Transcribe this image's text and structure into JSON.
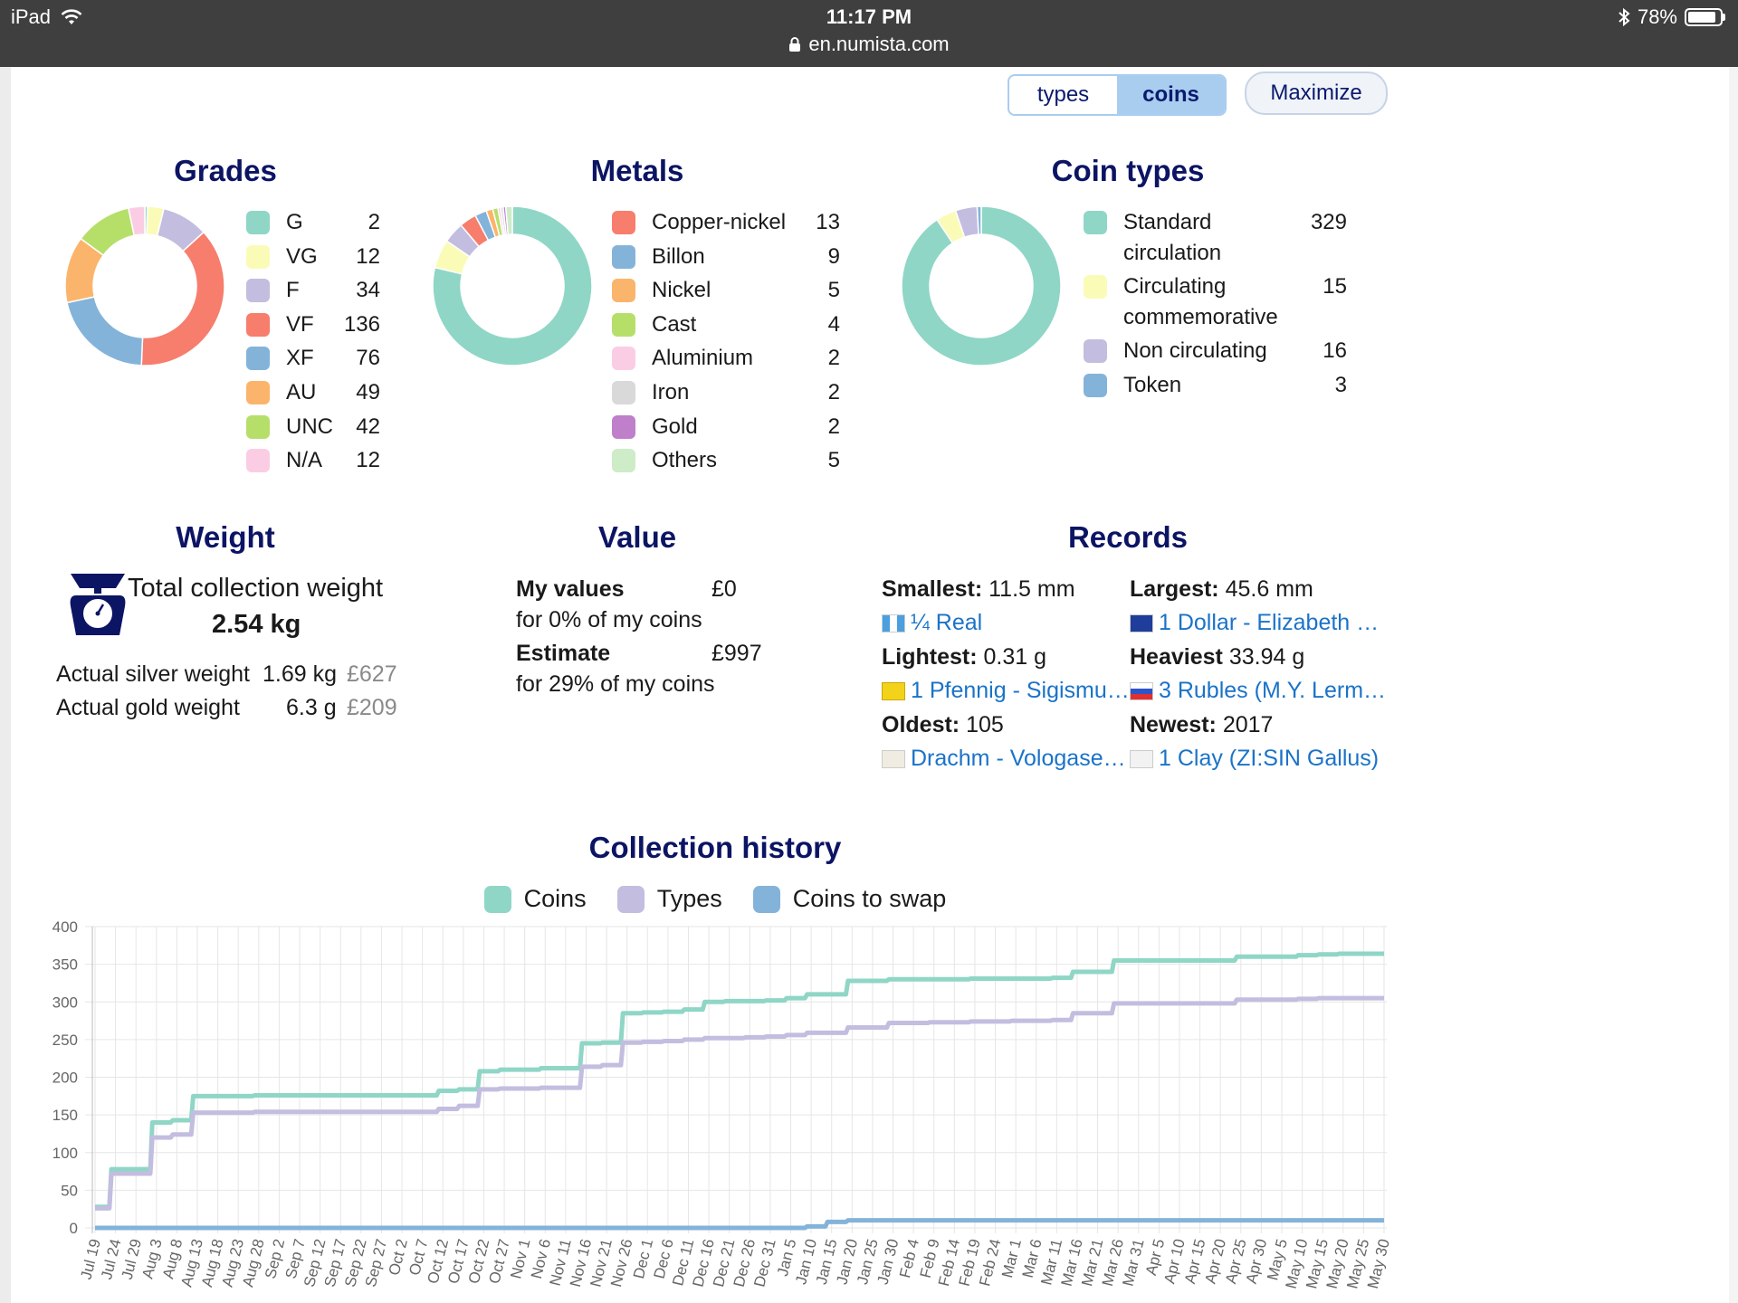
{
  "status": {
    "device": "iPad",
    "time": "11:17 PM",
    "url": "en.numista.com",
    "battery": "78%",
    "battery_level": 0.78
  },
  "toolbar": {
    "toggle_types": "types",
    "toggle_coins": "coins",
    "active": "coins",
    "maximize": "Maximize"
  },
  "colors": {
    "teal": "#8fd6c6",
    "yellow": "#fbfbb8",
    "lavender": "#c3bde0",
    "red": "#f77d6d",
    "blue": "#84b3da",
    "orange": "#fbb46b",
    "green": "#b6df6a",
    "pink": "#fbcde4",
    "grey": "#d9d9d9",
    "purple": "#bf7fca",
    "mint": "#cdecc7",
    "heading": "#0c1464",
    "link": "#1a73c8"
  },
  "grades": {
    "title": "Grades",
    "items": [
      {
        "label": "G",
        "value": 2,
        "color": "#8fd6c6"
      },
      {
        "label": "VG",
        "value": 12,
        "color": "#fbfbb8"
      },
      {
        "label": "F",
        "value": 34,
        "color": "#c3bde0"
      },
      {
        "label": "VF",
        "value": 136,
        "color": "#f77d6d"
      },
      {
        "label": "XF",
        "value": 76,
        "color": "#84b3da"
      },
      {
        "label": "AU",
        "value": 49,
        "color": "#fbb46b"
      },
      {
        "label": "UNC",
        "value": 42,
        "color": "#b6df6a"
      },
      {
        "label": "N/A",
        "value": 12,
        "color": "#fbcde4"
      }
    ]
  },
  "metals": {
    "title": "Metals",
    "items": [
      {
        "label": "Copper-nickel",
        "value": 13,
        "color": "#f77d6d"
      },
      {
        "label": "Billon",
        "value": 9,
        "color": "#84b3da"
      },
      {
        "label": "Nickel",
        "value": 5,
        "color": "#fbb46b"
      },
      {
        "label": "Cast",
        "value": 4,
        "color": "#b6df6a"
      },
      {
        "label": "Aluminium",
        "value": 2,
        "color": "#fbcde4"
      },
      {
        "label": "Iron",
        "value": 2,
        "color": "#d9d9d9"
      },
      {
        "label": "Gold",
        "value": 2,
        "color": "#bf7fca"
      },
      {
        "label": "Others",
        "value": 5,
        "color": "#cdecc7"
      }
    ],
    "donut_slices": [
      {
        "value": 296,
        "color": "#8fd6c6"
      },
      {
        "value": 22,
        "color": "#fbfbb8"
      },
      {
        "value": 16,
        "color": "#c3bde0"
      },
      {
        "value": 13,
        "color": "#f77d6d"
      },
      {
        "value": 9,
        "color": "#84b3da"
      },
      {
        "value": 5,
        "color": "#fbb46b"
      },
      {
        "value": 4,
        "color": "#b6df6a"
      },
      {
        "value": 2,
        "color": "#fbcde4"
      },
      {
        "value": 2,
        "color": "#d9d9d9"
      },
      {
        "value": 2,
        "color": "#bf7fca"
      },
      {
        "value": 5,
        "color": "#cdecc7"
      }
    ]
  },
  "coin_types": {
    "title": "Coin types",
    "items": [
      {
        "label": "Standard circulation",
        "value": 329,
        "color": "#8fd6c6"
      },
      {
        "label": "Circulating commemorative",
        "value": 15,
        "color": "#fbfbb8"
      },
      {
        "label": "Non circulating",
        "value": 16,
        "color": "#c3bde0"
      },
      {
        "label": "Token",
        "value": 3,
        "color": "#84b3da"
      }
    ]
  },
  "weight": {
    "title": "Weight",
    "total_label": "Total collection weight",
    "total_value": "2.54 kg",
    "silver_label": "Actual silver weight",
    "silver_value": "1.69 kg",
    "silver_price": "£627",
    "gold_label": "Actual gold weight",
    "gold_value": "6.3 g",
    "gold_price": "£209"
  },
  "value": {
    "title": "Value",
    "my_values_label": "My values",
    "my_values": "£0",
    "my_values_sub": "for 0% of my coins",
    "estimate_label": "Estimate",
    "estimate": "£997",
    "estimate_sub": "for 29% of my coins"
  },
  "records": {
    "title": "Records",
    "smallest_label": "Smallest:",
    "smallest": "11.5 mm",
    "smallest_link": "¼ Real",
    "largest_label": "Largest:",
    "largest": "45.6 mm",
    "largest_link": "1 Dollar - Elizabeth …",
    "lightest_label": "Lightest:",
    "lightest": "0.31 g",
    "lightest_link": "1 Pfennig - Sigismu…",
    "heaviest_label": "Heaviest",
    "heaviest": "33.94 g",
    "heaviest_link": "3 Rubles (M.Y. Lerm…",
    "oldest_label": "Oldest:",
    "oldest": "105",
    "oldest_link": "Drachm - Vologase…",
    "newest_label": "Newest:",
    "newest": "2017",
    "newest_link": "1 Clay (ZI:SIN Gallus)"
  },
  "history": {
    "title": "Collection history",
    "legend": [
      {
        "label": "Coins",
        "color": "#8fd6c6"
      },
      {
        "label": "Types",
        "color": "#c3bde0"
      },
      {
        "label": "Coins to swap",
        "color": "#84b3da"
      }
    ]
  },
  "chart_data": {
    "type": "line",
    "title": "Collection history",
    "ylim": [
      0,
      400
    ],
    "yticks": [
      0,
      50,
      100,
      150,
      200,
      250,
      300,
      350,
      400
    ],
    "grid": true,
    "legend_position": "top",
    "x": [
      "Jul 19",
      "Jul 24",
      "Jul 29",
      "Aug 3",
      "Aug 8",
      "Aug 13",
      "Aug 18",
      "Aug 23",
      "Aug 28",
      "Sep 2",
      "Sep 7",
      "Sep 12",
      "Sep 17",
      "Sep 22",
      "Sep 27",
      "Oct 2",
      "Oct 7",
      "Oct 12",
      "Oct 17",
      "Oct 22",
      "Oct 27",
      "Nov 1",
      "Nov 6",
      "Nov 11",
      "Nov 16",
      "Nov 21",
      "Nov 26",
      "Dec 1",
      "Dec 6",
      "Dec 11",
      "Dec 16",
      "Dec 21",
      "Dec 26",
      "Dec 31",
      "Jan 5",
      "Jan 10",
      "Jan 15",
      "Jan 20",
      "Jan 25",
      "Jan 30",
      "Feb 4",
      "Feb 9",
      "Feb 14",
      "Feb 19",
      "Feb 24",
      "Mar 1",
      "Mar 6",
      "Mar 11",
      "Mar 16",
      "Mar 21",
      "Mar 26",
      "Mar 31",
      "Apr 5",
      "Apr 10",
      "Apr 15",
      "Apr 20",
      "Apr 25",
      "Apr 30",
      "May 5",
      "May 10",
      "May 15",
      "May 20",
      "May 25",
      "May 30"
    ],
    "series": [
      {
        "name": "Coins",
        "color": "#8fd6c6",
        "values": [
          28,
          78,
          78,
          140,
          143,
          175,
          175,
          175,
          176,
          176,
          176,
          176,
          176,
          176,
          176,
          176,
          176,
          182,
          184,
          208,
          210,
          210,
          212,
          212,
          245,
          246,
          285,
          286,
          287,
          290,
          300,
          301,
          301,
          302,
          305,
          310,
          310,
          328,
          328,
          330,
          330,
          330,
          330,
          331,
          331,
          331,
          331,
          332,
          340,
          340,
          355,
          355,
          355,
          355,
          355,
          355,
          360,
          360,
          360,
          362,
          363,
          364,
          364,
          364
        ]
      },
      {
        "name": "Types",
        "color": "#c3bde0",
        "values": [
          26,
          72,
          72,
          120,
          124,
          153,
          153,
          153,
          154,
          154,
          154,
          154,
          154,
          154,
          154,
          154,
          154,
          158,
          162,
          184,
          185,
          185,
          186,
          186,
          214,
          216,
          246,
          247,
          248,
          250,
          252,
          252,
          253,
          254,
          256,
          259,
          259,
          266,
          266,
          272,
          272,
          273,
          273,
          274,
          274,
          275,
          275,
          276,
          285,
          285,
          298,
          298,
          298,
          298,
          298,
          298,
          303,
          303,
          303,
          304,
          305,
          305,
          305,
          305
        ]
      },
      {
        "name": "Coins to swap",
        "color": "#84b3da",
        "values": [
          0,
          0,
          0,
          0,
          0,
          0,
          0,
          0,
          0,
          0,
          0,
          0,
          0,
          0,
          0,
          0,
          0,
          0,
          0,
          0,
          0,
          0,
          0,
          0,
          0,
          0,
          0,
          0,
          0,
          0,
          0,
          0,
          0,
          0,
          0,
          2,
          8,
          10,
          10,
          10,
          10,
          10,
          10,
          10,
          10,
          10,
          10,
          10,
          10,
          10,
          10,
          10,
          10,
          10,
          10,
          10,
          10,
          10,
          10,
          10,
          10,
          10,
          10,
          10
        ]
      }
    ]
  }
}
